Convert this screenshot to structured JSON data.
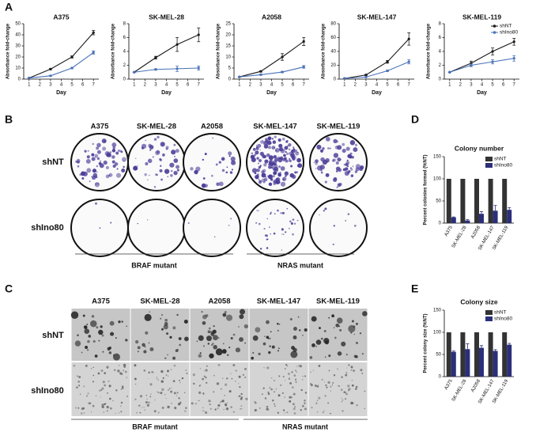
{
  "chart_data": [
    {
      "type": "line",
      "title": "A375",
      "xlabel": "Day",
      "ylabel": "Absorbance fold-change",
      "x": [
        1,
        3,
        5,
        7
      ],
      "xlim": [
        0.5,
        7.5
      ],
      "xticks": [
        1,
        2,
        3,
        4,
        5,
        6,
        7
      ],
      "ylim": [
        0,
        50
      ],
      "yticks": [
        0,
        10,
        20,
        30,
        40,
        50
      ],
      "series": [
        {
          "color": "#1a1a1a",
          "values": [
            1,
            9,
            20,
            42
          ],
          "errors": [
            0,
            0.5,
            1,
            2
          ]
        },
        {
          "color": "#4a72b8",
          "values": [
            1,
            3,
            10,
            24
          ],
          "errors": [
            0,
            0.3,
            0.6,
            1.5
          ]
        }
      ]
    },
    {
      "type": "line",
      "title": "SK-MEL-28",
      "xlabel": "Day",
      "ylabel": "Absorbance fold-change",
      "x": [
        1,
        3,
        5,
        7
      ],
      "xlim": [
        0.5,
        7.5
      ],
      "xticks": [
        1,
        2,
        3,
        4,
        5,
        6,
        7
      ],
      "ylim": [
        0,
        8
      ],
      "yticks": [
        0,
        2,
        4,
        6,
        8
      ],
      "series": [
        {
          "color": "#1a1a1a",
          "values": [
            1,
            3.1,
            5,
            6.4
          ],
          "errors": [
            0,
            0.2,
            1,
            1
          ]
        },
        {
          "color": "#4a72b8",
          "values": [
            1,
            1.4,
            1.5,
            1.6
          ],
          "errors": [
            0,
            0.1,
            0.4,
            0.3
          ]
        }
      ]
    },
    {
      "type": "line",
      "title": "A2058",
      "xlabel": "Day",
      "ylabel": "Absorbance fold-change",
      "x": [
        1,
        3,
        5,
        7
      ],
      "xlim": [
        0.5,
        7.5
      ],
      "xticks": [
        1,
        2,
        3,
        4,
        5,
        6,
        7
      ],
      "ylim": [
        0,
        25
      ],
      "yticks": [
        0,
        5,
        10,
        15,
        20,
        25
      ],
      "series": [
        {
          "color": "#1a1a1a",
          "values": [
            1,
            3.5,
            10,
            17
          ],
          "errors": [
            0,
            0.3,
            1.5,
            1.8
          ]
        },
        {
          "color": "#4a72b8",
          "values": [
            1,
            2,
            3.2,
            5.5
          ],
          "errors": [
            0,
            0.2,
            0.3,
            0.6
          ]
        }
      ]
    },
    {
      "type": "line",
      "title": "SK-MEL-147",
      "xlabel": "Day",
      "ylabel": "Absorbance fold-change",
      "x": [
        1,
        3,
        5,
        7
      ],
      "xlim": [
        0.5,
        7.5
      ],
      "xticks": [
        1,
        2,
        3,
        4,
        5,
        6,
        7
      ],
      "ylim": [
        0,
        80
      ],
      "yticks": [
        0,
        20,
        40,
        60,
        80
      ],
      "series": [
        {
          "color": "#1a1a1a",
          "values": [
            1,
            6,
            25,
            58
          ],
          "errors": [
            0,
            0.5,
            2,
            9
          ]
        },
        {
          "color": "#4a72b8",
          "values": [
            1,
            3,
            12,
            25
          ],
          "errors": [
            0,
            0.3,
            1,
            3
          ]
        }
      ]
    },
    {
      "type": "line",
      "title": "SK-MEL-119",
      "xlabel": "Day",
      "ylabel": "Absorbance fold-change",
      "x": [
        1,
        3,
        5,
        7
      ],
      "xlim": [
        0.5,
        7.5
      ],
      "xticks": [
        1,
        2,
        3,
        4,
        5,
        6,
        7
      ],
      "ylim": [
        0,
        8
      ],
      "yticks": [
        0,
        2,
        4,
        6,
        8
      ],
      "legend": "upper right",
      "series": [
        {
          "name": "shNT",
          "color": "#1a1a1a",
          "values": [
            1,
            2.3,
            4,
            5.4
          ],
          "errors": [
            0,
            0.3,
            0.5,
            0.5
          ]
        },
        {
          "name": "shIno80",
          "color": "#4a72b8",
          "values": [
            1,
            2,
            2.5,
            3
          ],
          "errors": [
            0,
            0.2,
            0.3,
            0.4
          ]
        }
      ]
    },
    {
      "type": "bar",
      "title": "Colony number",
      "ylabel": "Percent colonies formed (%NT)",
      "categories": [
        "A375",
        "SK-MEL-28",
        "A2058",
        "SK-MEL-147",
        "SK-MEL-119"
      ],
      "ylim": [
        0,
        150
      ],
      "yticks": [
        0,
        50,
        100,
        150
      ],
      "legend": "upper right",
      "series": [
        {
          "name": "shNT",
          "color": "#333333",
          "values": [
            100,
            100,
            100,
            100,
            100
          ]
        },
        {
          "name": "shIno80",
          "color": "#2b2f7a",
          "values": [
            13,
            6,
            21,
            28,
            30
          ],
          "errors": [
            1,
            2,
            5,
            12,
            5
          ]
        }
      ]
    },
    {
      "type": "bar",
      "title": "Colony size",
      "ylabel": "Percent colony size (%NT)",
      "categories": [
        "A375",
        "SK-MEL-28",
        "A2058",
        "SK-MEL-147",
        "SK-MEL-119"
      ],
      "ylim": [
        0,
        150
      ],
      "yticks": [
        0,
        50,
        100,
        150
      ],
      "legend": "upper right",
      "series": [
        {
          "name": "shNT",
          "color": "#333333",
          "values": [
            100,
            100,
            100,
            100,
            100
          ]
        },
        {
          "name": "shIno80",
          "color": "#2b2f7a",
          "values": [
            56,
            62,
            65,
            58,
            72
          ],
          "errors": [
            2,
            12,
            5,
            3,
            3
          ]
        }
      ]
    }
  ],
  "figure": {
    "panel_labels": [
      "A",
      "B",
      "C",
      "D",
      "E"
    ],
    "panel_b": {
      "columns": [
        "A375",
        "SK-MEL-28",
        "A2058",
        "SK-MEL-147",
        "SK-MEL-119"
      ],
      "rows": [
        "shNT",
        "shIno80"
      ],
      "groups": [
        "BRAF mutant",
        "NRAS mutant"
      ]
    },
    "panel_c": {
      "columns": [
        "A375",
        "SK-MEL-28",
        "A2058",
        "SK-MEL-147",
        "SK-MEL-119"
      ],
      "rows": [
        "shNT",
        "shIno80"
      ],
      "groups": [
        "BRAF mutant",
        "NRAS mutant"
      ]
    }
  }
}
